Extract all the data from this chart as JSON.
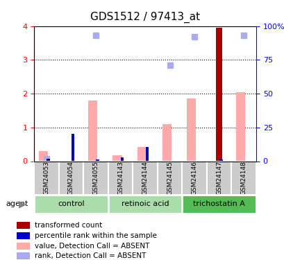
{
  "title": "GDS1512 / 97413_at",
  "samples": [
    "GSM24053",
    "GSM24054",
    "GSM24055",
    "GSM24143",
    "GSM24144",
    "GSM24145",
    "GSM24146",
    "GSM24147",
    "GSM24148"
  ],
  "groups": [
    {
      "label": "control",
      "indices": [
        0,
        1,
        2
      ],
      "color": "#aaffaa"
    },
    {
      "label": "retinoic acid",
      "indices": [
        3,
        4,
        5
      ],
      "color": "#aaffaa"
    },
    {
      "label": "trichostatin A",
      "indices": [
        6,
        7,
        8
      ],
      "color": "#44cc44"
    }
  ],
  "transformed_count": [
    0.0,
    0.0,
    0.0,
    0.0,
    0.0,
    0.0,
    0.0,
    3.95,
    0.0
  ],
  "percentile_rank": [
    0.08,
    0.82,
    0.05,
    0.12,
    0.42,
    0.0,
    0.02,
    0.05,
    0.0
  ],
  "value_absent": [
    0.3,
    0.0,
    1.8,
    0.18,
    0.42,
    1.1,
    1.85,
    0.0,
    2.05
  ],
  "rank_absent": [
    0.08,
    0.0,
    3.72,
    0.0,
    0.0,
    2.85,
    3.68,
    0.0,
    3.72
  ],
  "ylim_left": [
    0,
    4
  ],
  "ylim_right": [
    0,
    100
  ],
  "yticks_left": [
    0,
    1,
    2,
    3,
    4
  ],
  "yticks_right": [
    0,
    25,
    50,
    75,
    100
  ],
  "yticklabels_right": [
    "0",
    "25",
    "50",
    "75",
    "100%"
  ],
  "color_transformed": "#aa0000",
  "color_percentile": "#0000cc",
  "color_value_absent": "#ffaaaa",
  "color_rank_absent": "#aaaaee",
  "bar_width": 0.25,
  "group_bg_color": [
    "#cceecc",
    "#cceecc",
    "#66cc66"
  ],
  "sample_bg_color": "#cccccc"
}
